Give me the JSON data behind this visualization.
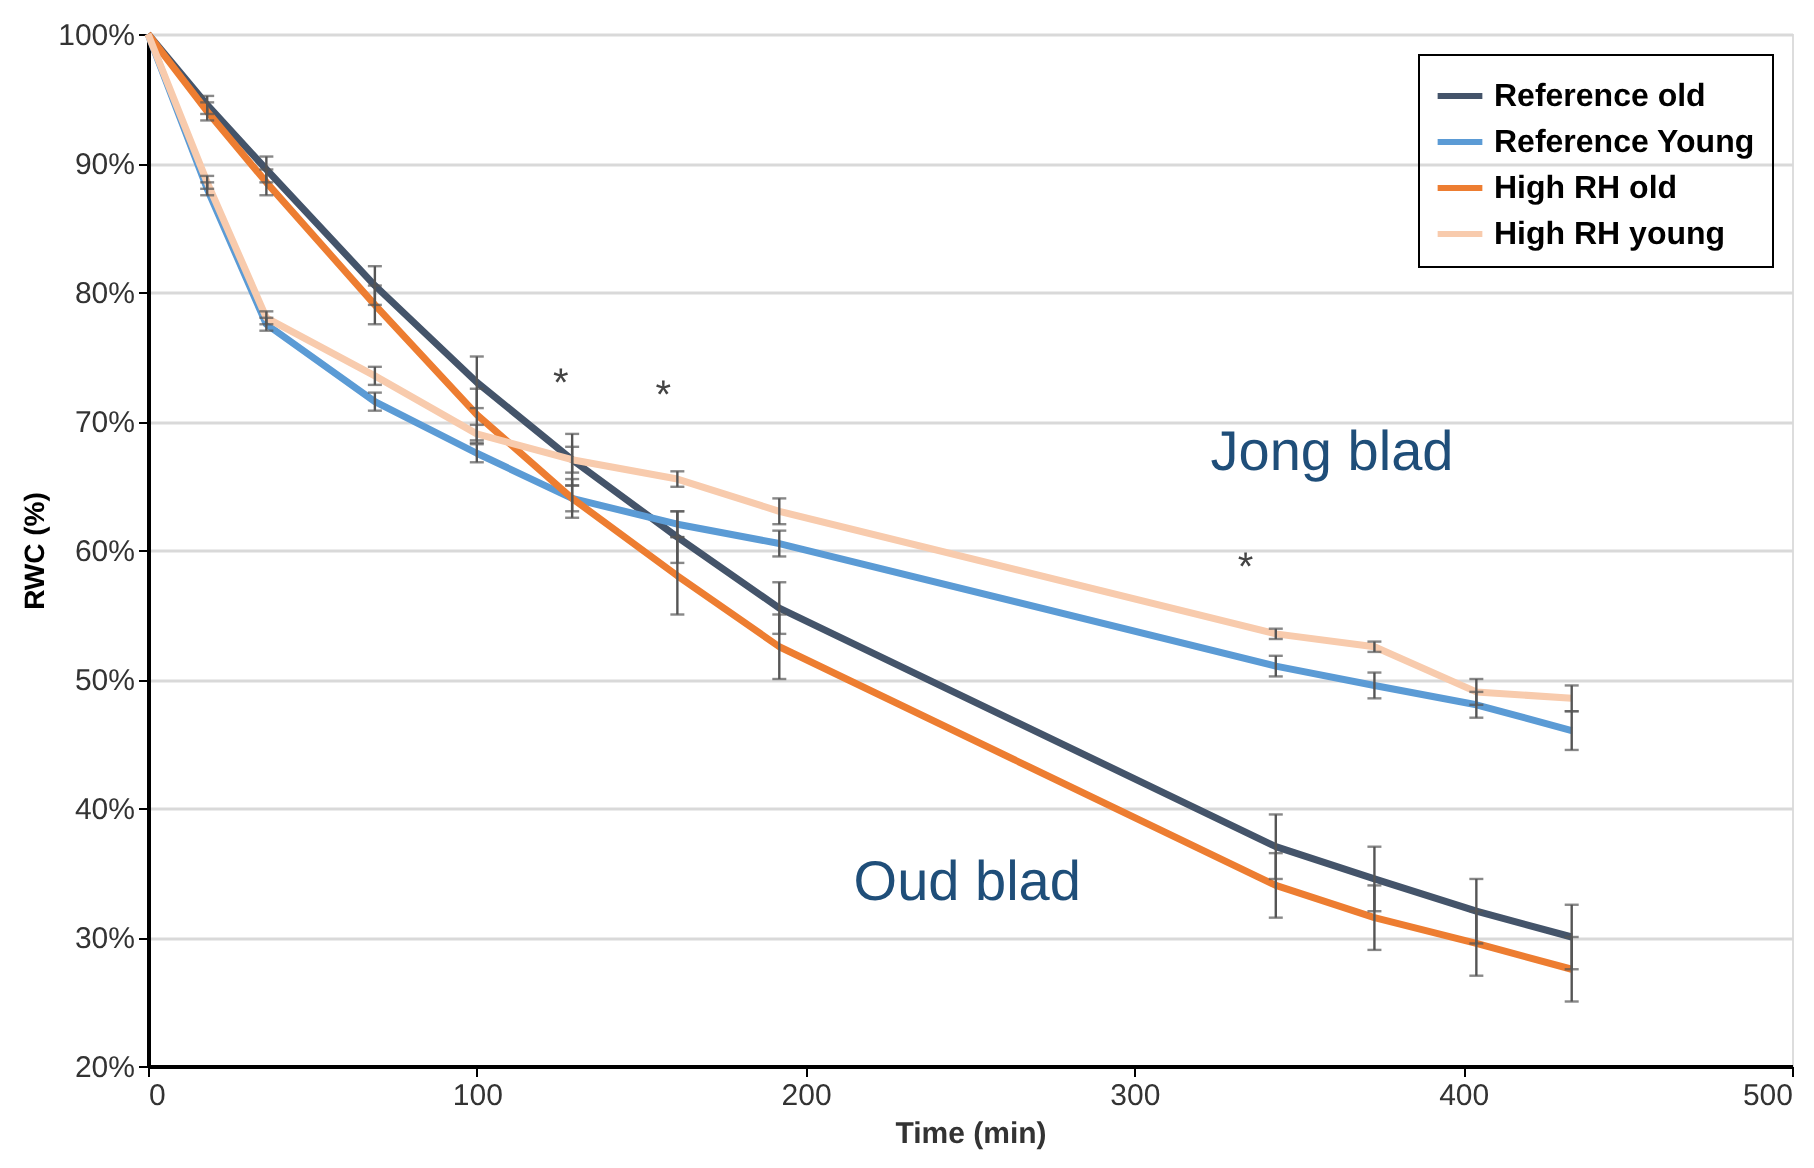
{
  "chart_data": {
    "type": "line",
    "xlabel": "Time (min)",
    "ylabel": "RWC (%)",
    "x": [
      0,
      18,
      36,
      69,
      100,
      129,
      161,
      192,
      343,
      373,
      404,
      433
    ],
    "series": [
      {
        "name": "Reference old",
        "color": "#44546a",
        "values": [
          100,
          94.5,
          89.5,
          80.5,
          73,
          67,
          61,
          55.5,
          37,
          34.5,
          32,
          30
        ],
        "errors": [
          null,
          0.7,
          1,
          1.5,
          2,
          2,
          2,
          2,
          2.5,
          2.5,
          2.5,
          2.5
        ]
      },
      {
        "name": "Reference Young",
        "color": "#5b9bd5",
        "values": [
          100,
          88,
          77.5,
          71.5,
          67.5,
          64,
          62,
          60.5,
          51,
          49.5,
          48,
          46
        ],
        "errors": [
          null,
          0.5,
          0.5,
          0.7,
          0.7,
          1,
          1,
          1,
          0.8,
          1,
          1,
          1.5
        ]
      },
      {
        "name": "High RH old",
        "color": "#ed7d31",
        "values": [
          100,
          94,
          88.5,
          79,
          70.5,
          64,
          58,
          52.5,
          34,
          31.5,
          29.5,
          27.5
        ],
        "errors": [
          null,
          0.7,
          1,
          1.5,
          2,
          1.5,
          3,
          2.5,
          2.5,
          2.5,
          2.5,
          2.5
        ]
      },
      {
        "name": "High RH young",
        "color": "#f8cbad",
        "values": [
          100,
          88.5,
          78,
          73.5,
          69,
          67,
          65.5,
          63,
          53.5,
          52.5,
          49,
          48.5
        ],
        "errors": [
          null,
          0.5,
          0.5,
          0.7,
          0.7,
          1,
          0.6,
          1,
          0.4,
          0.4,
          1,
          1
        ]
      }
    ],
    "xlim": [
      0,
      500
    ],
    "xticks": [
      0,
      100,
      200,
      300,
      400,
      500
    ],
    "ylim": [
      20,
      100
    ],
    "yticks": [
      {
        "value": 20,
        "label": "20%"
      },
      {
        "value": 30,
        "label": "30%"
      },
      {
        "value": 40,
        "label": "40%"
      },
      {
        "value": 50,
        "label": "50%"
      },
      {
        "value": 60,
        "label": "60%"
      },
      {
        "value": 70,
        "label": "70%"
      },
      {
        "value": 80,
        "label": "80%"
      },
      {
        "value": 90,
        "label": "90%"
      },
      {
        "value": 100,
        "label": "100%"
      }
    ],
    "annotations": [
      "*",
      "*",
      "*",
      "Jong blad",
      "Oud blad"
    ],
    "grid": "y",
    "legend": "top right",
    "marker": "none",
    "line_style": "solid"
  }
}
